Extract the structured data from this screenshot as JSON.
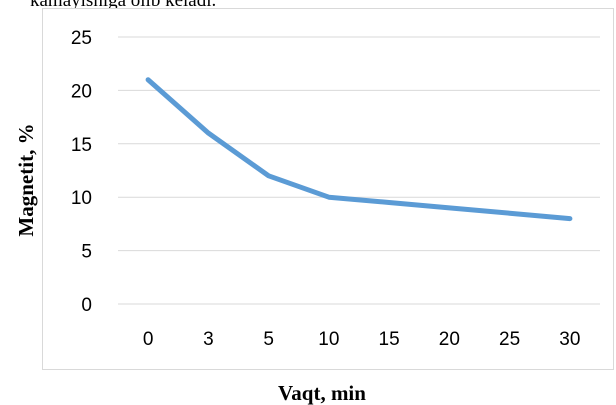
{
  "page": {
    "top_fragment": "kamayishiga olib keladi."
  },
  "chart_data": {
    "type": "line",
    "title": "",
    "xlabel": "Vaqt, min",
    "ylabel": "Magnetit, %",
    "categories": [
      "0",
      "3",
      "5",
      "10",
      "15",
      "20",
      "25",
      "30"
    ],
    "series": [
      {
        "values": [
          21,
          16,
          12,
          10,
          9.5,
          9,
          8.5,
          8
        ]
      }
    ],
    "ylim": [
      0,
      25
    ],
    "yticks": [
      "0",
      "5",
      "10",
      "15",
      "20",
      "25"
    ],
    "grid": true,
    "legend": "none",
    "line_color": "#5b9bd5",
    "grid_color": "#d9d9d9"
  }
}
